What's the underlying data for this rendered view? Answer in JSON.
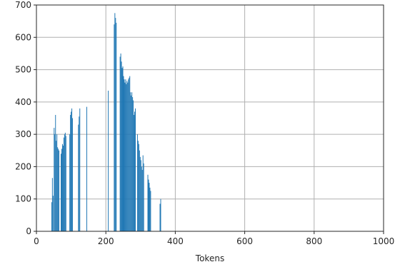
{
  "chart_data": {
    "type": "bar",
    "title": "",
    "xlabel": "Tokens",
    "ylabel": "",
    "xlim": [
      0,
      1000
    ],
    "ylim": [
      0,
      700
    ],
    "xticks": [
      "0",
      "200",
      "400",
      "600",
      "800",
      "1000"
    ],
    "yticks": [
      "0",
      "100",
      "200",
      "300",
      "400",
      "500",
      "600",
      "700"
    ],
    "grid": true,
    "color": "#1f77b4",
    "bins": [
      [
        43,
        45,
        90
      ],
      [
        45,
        47,
        165
      ],
      [
        47,
        49,
        110
      ],
      [
        50,
        52,
        320
      ],
      [
        52,
        54,
        300
      ],
      [
        54,
        56,
        360
      ],
      [
        56,
        58,
        280
      ],
      [
        58,
        60,
        300
      ],
      [
        60,
        62,
        260
      ],
      [
        62,
        64,
        255
      ],
      [
        64,
        66,
        250
      ],
      [
        70,
        72,
        240
      ],
      [
        72,
        74,
        255
      ],
      [
        74,
        76,
        270
      ],
      [
        76,
        78,
        265
      ],
      [
        78,
        80,
        290
      ],
      [
        80,
        82,
        300
      ],
      [
        82,
        84,
        305
      ],
      [
        84,
        86,
        295
      ],
      [
        95,
        97,
        300
      ],
      [
        97,
        99,
        360
      ],
      [
        99,
        101,
        370
      ],
      [
        101,
        103,
        380
      ],
      [
        103,
        105,
        350
      ],
      [
        120,
        122,
        330
      ],
      [
        122,
        124,
        355
      ],
      [
        124,
        126,
        380
      ],
      [
        144,
        146,
        385
      ],
      [
        206,
        208,
        435
      ],
      [
        223,
        225,
        640
      ],
      [
        225,
        227,
        675
      ],
      [
        227,
        229,
        660
      ],
      [
        229,
        231,
        645
      ],
      [
        240,
        242,
        540
      ],
      [
        242,
        244,
        550
      ],
      [
        244,
        246,
        525
      ],
      [
        246,
        248,
        505
      ],
      [
        248,
        250,
        510
      ],
      [
        250,
        252,
        480
      ],
      [
        252,
        254,
        470
      ],
      [
        254,
        256,
        460
      ],
      [
        256,
        258,
        470
      ],
      [
        258,
        260,
        455
      ],
      [
        260,
        262,
        465
      ],
      [
        262,
        264,
        460
      ],
      [
        264,
        266,
        470
      ],
      [
        266,
        268,
        475
      ],
      [
        268,
        270,
        480
      ],
      [
        270,
        272,
        430
      ],
      [
        272,
        274,
        420
      ],
      [
        274,
        276,
        430
      ],
      [
        276,
        278,
        415
      ],
      [
        278,
        280,
        405
      ],
      [
        280,
        282,
        360
      ],
      [
        282,
        284,
        370
      ],
      [
        284,
        286,
        380
      ],
      [
        290,
        292,
        300
      ],
      [
        292,
        294,
        280
      ],
      [
        294,
        296,
        270
      ],
      [
        296,
        298,
        250
      ],
      [
        298,
        300,
        230
      ],
      [
        300,
        302,
        220
      ],
      [
        302,
        304,
        200
      ],
      [
        304,
        306,
        190
      ],
      [
        306,
        308,
        235
      ],
      [
        308,
        310,
        210
      ],
      [
        320,
        322,
        175
      ],
      [
        322,
        324,
        160
      ],
      [
        324,
        326,
        150
      ],
      [
        326,
        328,
        135
      ],
      [
        328,
        330,
        125
      ],
      [
        355,
        357,
        85
      ],
      [
        357,
        359,
        100
      ]
    ]
  }
}
